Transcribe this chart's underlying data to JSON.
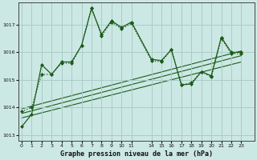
{
  "bg_color": "#cce8e4",
  "grid_color": "#aaccc8",
  "line_color": "#1a5c1a",
  "title": "Graphe pression niveau de la mer (hPa)",
  "ylabel_ticks": [
    1013,
    1014,
    1015,
    1016,
    1017
  ],
  "ylim": [
    1012.8,
    1017.8
  ],
  "xtick_positions": [
    0,
    1,
    2,
    3,
    4,
    5,
    6,
    7,
    8,
    9,
    10,
    11,
    14,
    15,
    16,
    17,
    18,
    19,
    20,
    21,
    22,
    23
  ],
  "xtick_labels": [
    "0",
    "1",
    "2",
    "3",
    "4",
    "5",
    "6",
    "7",
    "8",
    "9",
    "10",
    "11",
    "14",
    "15",
    "16",
    "17",
    "18",
    "19",
    "20",
    "21",
    "22",
    "23"
  ],
  "x_display_positions": [
    0,
    1,
    2,
    3,
    4,
    5,
    6,
    7,
    8,
    9,
    10,
    11,
    12,
    13,
    14,
    15,
    16,
    17,
    18,
    19,
    20,
    21,
    22,
    23
  ],
  "xlim": [
    -0.3,
    23.3
  ],
  "series1_x": [
    0,
    1,
    2,
    3,
    4,
    5,
    6,
    7,
    8,
    9,
    10,
    11,
    14,
    15,
    16,
    17,
    18,
    19,
    20,
    21,
    22,
    23
  ],
  "series1_y": [
    1013.3,
    1013.75,
    1015.55,
    1015.2,
    1015.65,
    1015.65,
    1016.25,
    1017.6,
    1016.65,
    1017.15,
    1016.9,
    1017.1,
    1015.75,
    1015.7,
    1016.1,
    1014.82,
    1014.85,
    1015.3,
    1015.15,
    1016.55,
    1016.0,
    1016.0
  ],
  "series2_x": [
    0,
    1,
    2,
    3,
    4,
    5,
    6,
    7,
    8,
    9,
    10,
    11,
    14,
    15,
    16,
    17,
    18,
    19,
    20,
    21,
    22,
    23
  ],
  "series2_y": [
    1013.85,
    1014.0,
    1015.2,
    1015.2,
    1015.6,
    1015.6,
    1016.25,
    1017.6,
    1016.6,
    1017.1,
    1016.85,
    1017.05,
    1015.7,
    1015.65,
    1016.1,
    1014.82,
    1014.9,
    1015.3,
    1015.1,
    1016.5,
    1015.95,
    1015.95
  ],
  "trend1_x": [
    0,
    23
  ],
  "trend1_y": [
    1013.95,
    1016.05
  ],
  "trend2_x": [
    0,
    23
  ],
  "trend2_y": [
    1013.78,
    1015.88
  ],
  "trend3_x": [
    0,
    23
  ],
  "trend3_y": [
    1013.62,
    1015.65
  ]
}
